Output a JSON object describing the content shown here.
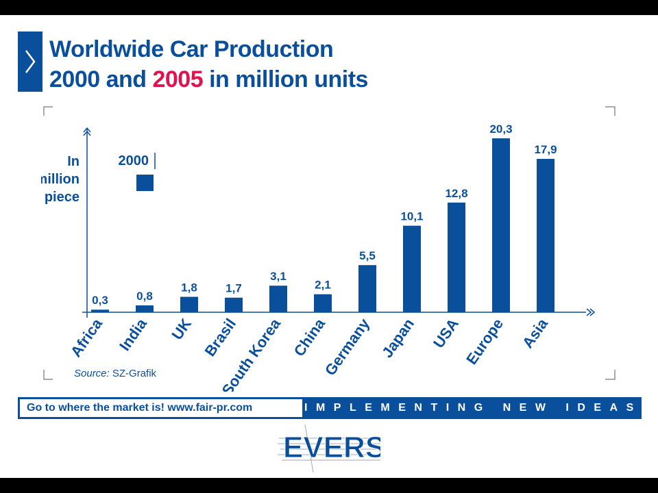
{
  "title": {
    "line1": "Worldwide Car Production",
    "line2_prefix": "2000 and ",
    "line2_highlight": "2005",
    "line2_suffix": " in million units"
  },
  "colors": {
    "accent": "#0a4f9c",
    "highlight": "#e0134f"
  },
  "icons": [
    "chevron-right-icon"
  ],
  "legend_label": "2000",
  "source": {
    "label": "Source:",
    "text": " SZ-Grafik"
  },
  "footer": {
    "left": "Go to where the market is!   www.fair-pr.com",
    "right": "IMPLEMENTING NEW IDEAS"
  },
  "logo": {
    "text": "EVERS"
  },
  "chart_data": {
    "type": "bar",
    "ylabel": [
      "In",
      "million",
      "piece"
    ],
    "categories": [
      "Africa",
      "India",
      "UK",
      "Brasil",
      "South Korea",
      "China",
      "Germany",
      "Japan",
      "USA",
      "Europe",
      "Asia"
    ],
    "values": [
      0.3,
      0.8,
      1.8,
      1.7,
      3.1,
      2.1,
      5.5,
      10.1,
      12.8,
      20.3,
      17.9
    ],
    "value_labels": [
      "0,3",
      "0,8",
      "1,8",
      "1,7",
      "3,1",
      "2,1",
      "5,5",
      "10,1",
      "12,8",
      "20,3",
      "17,9"
    ],
    "ylim": [
      0,
      20.3
    ],
    "grid": false,
    "legend": {
      "position": "top-left",
      "entries": [
        "2000"
      ]
    }
  }
}
